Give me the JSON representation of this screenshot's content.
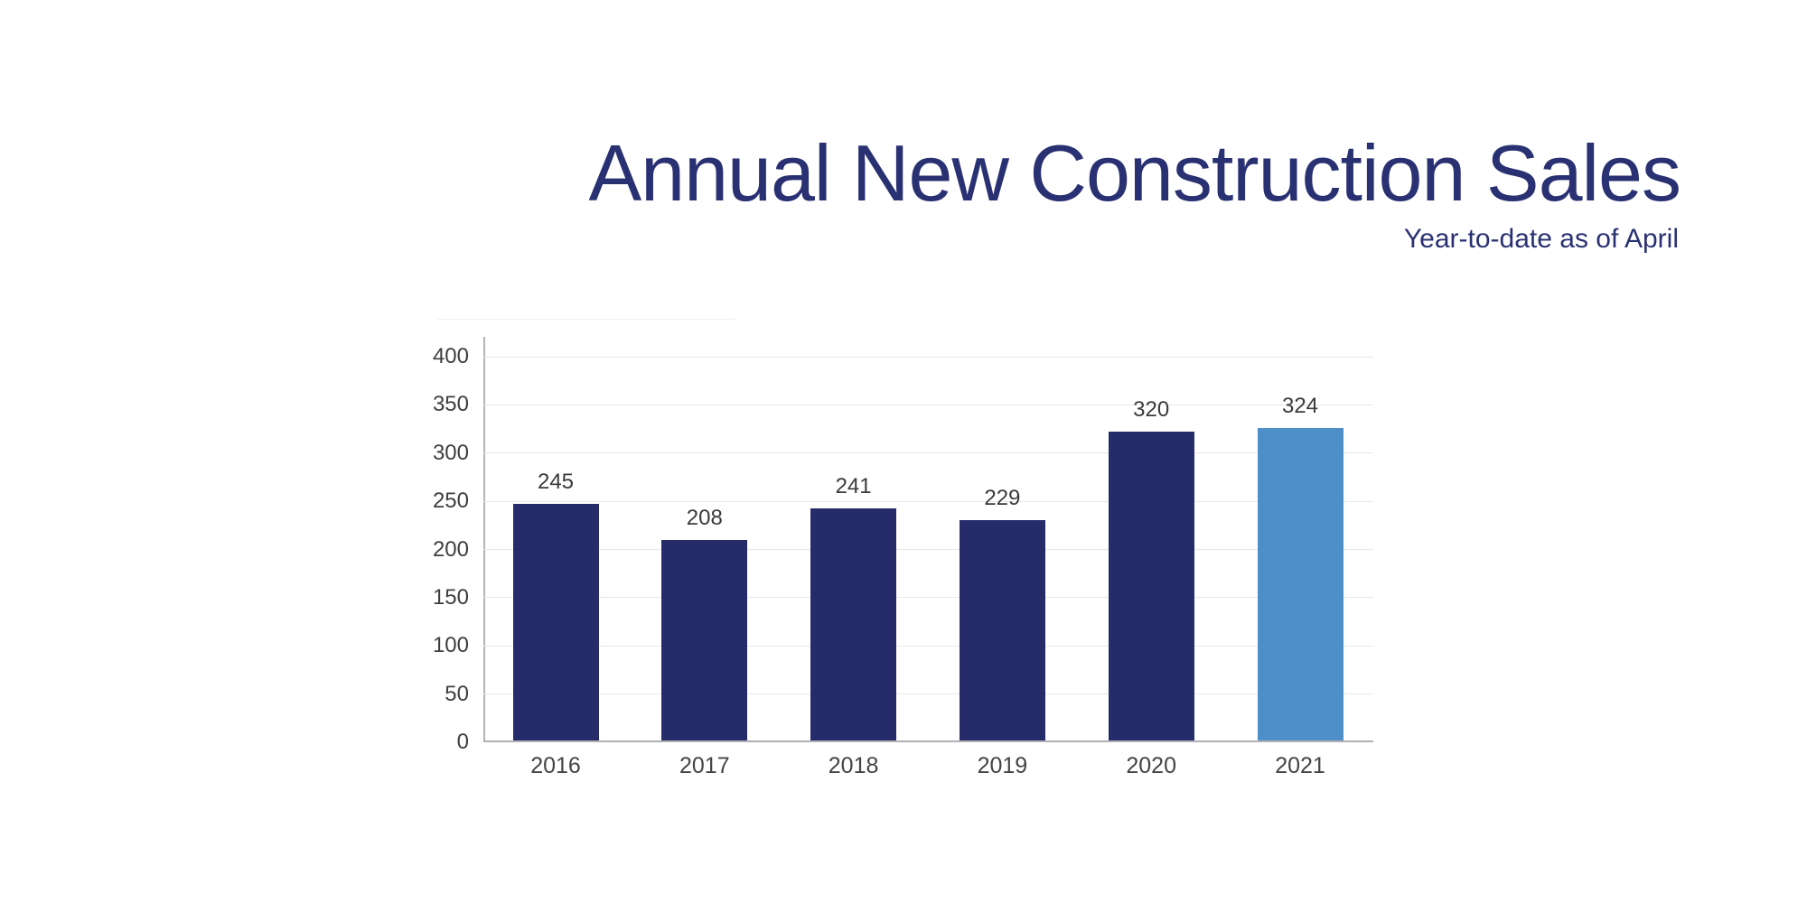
{
  "title": {
    "text": "Annual New Construction Sales",
    "subtitle": "Year-to-date as of April"
  },
  "colors": {
    "title_navy": "#2a3172",
    "bar_default": "#262c69",
    "bar_highlight": "#4e8fca",
    "tick_label": "#3e3e3e",
    "gridline": "#e8e8ed",
    "axis_line": "#b0b0b6"
  },
  "chart_data": {
    "type": "bar",
    "title": "Annual New Construction Sales",
    "subtitle": "Year-to-date as of April",
    "categories": [
      "2016",
      "2017",
      "2018",
      "2019",
      "2020",
      "2021"
    ],
    "values": [
      245,
      208,
      241,
      229,
      320,
      324
    ],
    "data_labels": [
      "245",
      "208",
      "241",
      "229",
      "320",
      "324"
    ],
    "highlight_index": 5,
    "xlabel": "",
    "ylabel": "",
    "ylim": [
      0,
      400
    ],
    "yticks": [
      0,
      50,
      100,
      150,
      200,
      250,
      300,
      350,
      400
    ],
    "grid": true,
    "legend": false
  }
}
